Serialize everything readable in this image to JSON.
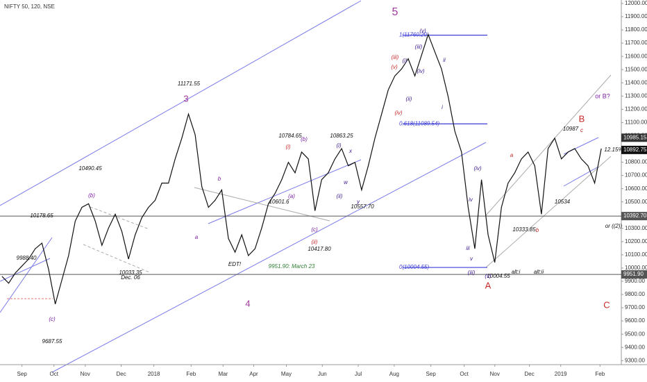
{
  "chart_data": {
    "type": "line",
    "title": "NIFTY 50, 120, NSE",
    "series": [
      {
        "name": "NIFTY 50",
        "color": "#111111",
        "values": [
          9937,
          9885,
          9963,
          10016,
          10068,
          10146,
          10188,
          9990,
          9728,
          9911,
          10094,
          10355,
          10459,
          10486,
          10355,
          10172,
          10303,
          10407,
          10277,
          10068,
          10251,
          10381,
          10459,
          10512,
          10642,
          10642,
          10825,
          10982,
          11164,
          11008,
          10616,
          10459,
          10512,
          10590,
          10224,
          10120,
          10251,
          10094,
          10146,
          10303,
          10486,
          10564,
          10668,
          10799,
          10720,
          10877,
          10825,
          10433,
          10668,
          10720,
          10825,
          10903,
          10773,
          10799,
          10590,
          10773,
          10982,
          11164,
          11347,
          11452,
          11504,
          11582,
          11452,
          11608,
          11765,
          11634,
          11504,
          11295,
          11034,
          10877,
          10459,
          10146,
          10668,
          10251,
          10042,
          10459,
          10642,
          10720,
          10825,
          10877,
          10773,
          10407,
          10903,
          10982,
          10825,
          10877,
          10903,
          10825,
          10773,
          10642,
          10903
        ]
      }
    ],
    "xlim": [
      -0.3,
      93
    ],
    "xticks": [
      {
        "value": 3,
        "label": "Sep"
      },
      {
        "value": 7.8,
        "label": "Oct"
      },
      {
        "value": 12.5,
        "label": "Nov"
      },
      {
        "value": 17.9,
        "label": "Dec"
      },
      {
        "value": 22.8,
        "label": "2018"
      },
      {
        "value": 28.4,
        "label": "Feb"
      },
      {
        "value": 33.2,
        "label": "Mar"
      },
      {
        "value": 37.8,
        "label": "Apr"
      },
      {
        "value": 42.7,
        "label": "May"
      },
      {
        "value": 48.1,
        "label": "Jun"
      },
      {
        "value": 53.5,
        "label": "Jul"
      },
      {
        "value": 58.9,
        "label": "Aug"
      },
      {
        "value": 64.4,
        "label": "Sep"
      },
      {
        "value": 69.4,
        "label": "Oct"
      },
      {
        "value": 74,
        "label": "Nov"
      },
      {
        "value": 79.2,
        "label": "Dec"
      },
      {
        "value": 83.9,
        "label": "2019"
      },
      {
        "value": 89.8,
        "label": "Feb"
      }
    ],
    "ylim": [
      9270,
      12026
    ],
    "yticks": [
      {
        "value": 9300,
        "label": "9300.00"
      },
      {
        "value": 9400,
        "label": "9400.00"
      },
      {
        "value": 9500,
        "label": "9500.00"
      },
      {
        "value": 9600,
        "label": "9600.00"
      },
      {
        "value": 9700,
        "label": "9700.00"
      },
      {
        "value": 9800,
        "label": "9800.00"
      },
      {
        "value": 9900,
        "label": "9900.00"
      },
      {
        "value": 10000,
        "label": "10000.00"
      },
      {
        "value": 10100,
        "label": "10100.00"
      },
      {
        "value": 10200,
        "label": "10200.00"
      },
      {
        "value": 10300,
        "label": "10300.00"
      },
      {
        "value": 10400,
        "label": "10400.00"
      },
      {
        "value": 10500,
        "label": "10500.00"
      },
      {
        "value": 10600,
        "label": "10600.00"
      },
      {
        "value": 10700,
        "label": "10700.00"
      },
      {
        "value": 10800,
        "label": "10800.00"
      },
      {
        "value": 10900,
        "label": "10900.00"
      },
      {
        "value": 11000,
        "label": "11000.00"
      },
      {
        "value": 11100,
        "label": "11100.00"
      },
      {
        "value": 11200,
        "label": "11200.00"
      },
      {
        "value": 11300,
        "label": "11300.00"
      },
      {
        "value": 11400,
        "label": "11400.00"
      },
      {
        "value": 11500,
        "label": "11500.00"
      },
      {
        "value": 11600,
        "label": "11600.00"
      },
      {
        "value": 11700,
        "label": "11700.00"
      },
      {
        "value": 11800,
        "label": "11800.00"
      },
      {
        "value": 11900,
        "label": "11900.00"
      },
      {
        "value": 12000,
        "label": "12000.00"
      }
    ],
    "levels": [
      {
        "value": 11760.2,
        "label": "1(11760.20)",
        "color": "#3f3fd8"
      },
      {
        "value": 11089.54,
        "label": "0.618(11089.54)",
        "color": "#3f3fd8"
      },
      {
        "value": 10004.55,
        "label": "0(10004.55)",
        "color": "#3f3fd8"
      },
      {
        "value": 10392.7,
        "label": "10392.70",
        "color": "#555555"
      },
      {
        "value": 9951.9,
        "label": "9951.90",
        "color": "#555555"
      }
    ],
    "price_tags": [
      {
        "value": 10985.15,
        "label": "10985.15",
        "color": "#333333"
      },
      {
        "value": 10892.75,
        "label": "10892.75",
        "color": "#111111"
      }
    ],
    "annotations": [
      {
        "text": "5",
        "color": "#a0399c"
      },
      {
        "text": "3",
        "color": "#a0399c"
      },
      {
        "text": "4",
        "color": "#a0399c"
      },
      {
        "text": "B",
        "color": "#c62828"
      },
      {
        "text": "A",
        "color": "#c62828"
      },
      {
        "text": "C",
        "color": "#c62828"
      },
      {
        "text": "11171.55",
        "color": "#111111"
      },
      {
        "text": "10490.45",
        "color": "#111111"
      },
      {
        "text": "10178.65",
        "color": "#111111"
      },
      {
        "text": "9988.40",
        "color": "#111111"
      },
      {
        "text": "10033.35",
        "color": "#111111"
      },
      {
        "text": "Dec. 06",
        "color": "#111111"
      },
      {
        "text": "9687.55",
        "color": "#111111"
      },
      {
        "text": "10784.65",
        "color": "#111111"
      },
      {
        "text": "10863.25",
        "color": "#111111"
      },
      {
        "text": "10601.6",
        "color": "#111111"
      },
      {
        "text": "10417.80",
        "color": "#111111"
      },
      {
        "text": "10557.70",
        "color": "#111111"
      },
      {
        "text": "10987",
        "color": "#111111"
      },
      {
        "text": "10534",
        "color": "#111111"
      },
      {
        "text": "10333.85",
        "color": "#111111"
      },
      {
        "text": "10004.55",
        "color": "#111111"
      },
      {
        "text": "9951.90: March 23",
        "color": "#2e7d32"
      },
      {
        "text": "alt:i",
        "color": "#111111"
      },
      {
        "text": "alt:ii",
        "color": "#111111"
      },
      {
        "text": "or B?",
        "color": "#7b1fa2"
      },
      {
        "text": "or ((2))",
        "color": "#111111"
      },
      {
        "text": "EDT!",
        "color": "#111111"
      },
      {
        "text": "12.15%",
        "color": "#111111"
      },
      {
        "text": "(v)",
        "color": "#3c1a8c"
      },
      {
        "text": "(iii)",
        "color": "#3c1a8c"
      },
      {
        "text": "(iv)",
        "color": "#3c1a8c"
      },
      {
        "text": "(i)",
        "color": "#3c1a8c"
      },
      {
        "text": "(ii)",
        "color": "#3c1a8c"
      },
      {
        "text": "ii",
        "color": "#3c1a8c"
      },
      {
        "text": "i",
        "color": "#3c1a8c"
      },
      {
        "text": "(iv)",
        "color": "#3c1a8c"
      },
      {
        "text": "iv",
        "color": "#3c1a8c"
      },
      {
        "text": "iii",
        "color": "#3c1a8c"
      },
      {
        "text": "v",
        "color": "#3c1a8c"
      },
      {
        "text": "(iii)",
        "color": "#3c1a8c"
      },
      {
        "text": "(v)",
        "color": "#3c1a8c"
      },
      {
        "text": "b",
        "color": "#7b1fa2"
      },
      {
        "text": "a",
        "color": "#7b1fa2"
      },
      {
        "text": "(b)",
        "color": "#7b1fa2"
      },
      {
        "text": "(c)",
        "color": "#7b1fa2"
      },
      {
        "text": "(a)",
        "color": "#7b1fa2"
      },
      {
        "text": "(i)",
        "color": "#c62828"
      },
      {
        "text": "(ii)",
        "color": "#c62828"
      },
      {
        "text": "(iii)",
        "color": "#c62828"
      },
      {
        "text": "(iv)",
        "color": "#c62828"
      },
      {
        "text": "(v)",
        "color": "#c62828"
      },
      {
        "text": "a",
        "color": "#c62828"
      },
      {
        "text": "b",
        "color": "#c62828"
      },
      {
        "text": "c",
        "color": "#c62828"
      },
      {
        "text": "(i)",
        "color": "#3c1a8c"
      },
      {
        "text": "(ii)",
        "color": "#3c1a8c"
      },
      {
        "text": "w",
        "color": "#3c1a8c"
      },
      {
        "text": "x",
        "color": "#3c1a8c"
      },
      {
        "text": "y",
        "color": "#3c1a8c"
      },
      {
        "text": "(b)",
        "color": "#7b1fa2"
      },
      {
        "text": "(c)",
        "color": "#7b1fa2"
      }
    ]
  }
}
